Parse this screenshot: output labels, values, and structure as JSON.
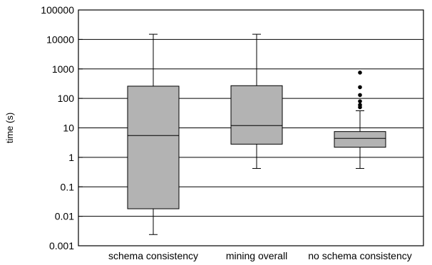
{
  "chart_data": {
    "type": "boxplot",
    "title": "",
    "xlabel": "",
    "ylabel": "time (s)",
    "yscale": "log",
    "ylim": [
      0.001,
      100000
    ],
    "yticks": [
      0.001,
      0.01,
      0.1,
      1,
      10,
      100,
      1000,
      10000,
      100000
    ],
    "ytick_labels": [
      "0.001",
      "0.01",
      "0.1",
      "1",
      "10",
      "100",
      "1000",
      "10000",
      "100000"
    ],
    "grid": "horizontal",
    "legend": "none",
    "box_color": "#b3b3b3",
    "categories": [
      "schema consistency",
      "mining overall",
      "no schema consistency"
    ],
    "boxes": [
      {
        "whisker_low": 0.0024,
        "q1": 0.018,
        "median": 5.5,
        "q3": 260,
        "whisker_high": 15000,
        "outliers": []
      },
      {
        "whisker_low": 0.42,
        "q1": 2.8,
        "median": 12,
        "q3": 270,
        "whisker_high": 15000,
        "outliers": []
      },
      {
        "whisker_low": 0.42,
        "q1": 2.2,
        "median": 4.4,
        "q3": 7.5,
        "whisker_high": 38,
        "outliers": [
          50,
          60,
          80,
          130,
          240,
          750
        ]
      }
    ]
  }
}
